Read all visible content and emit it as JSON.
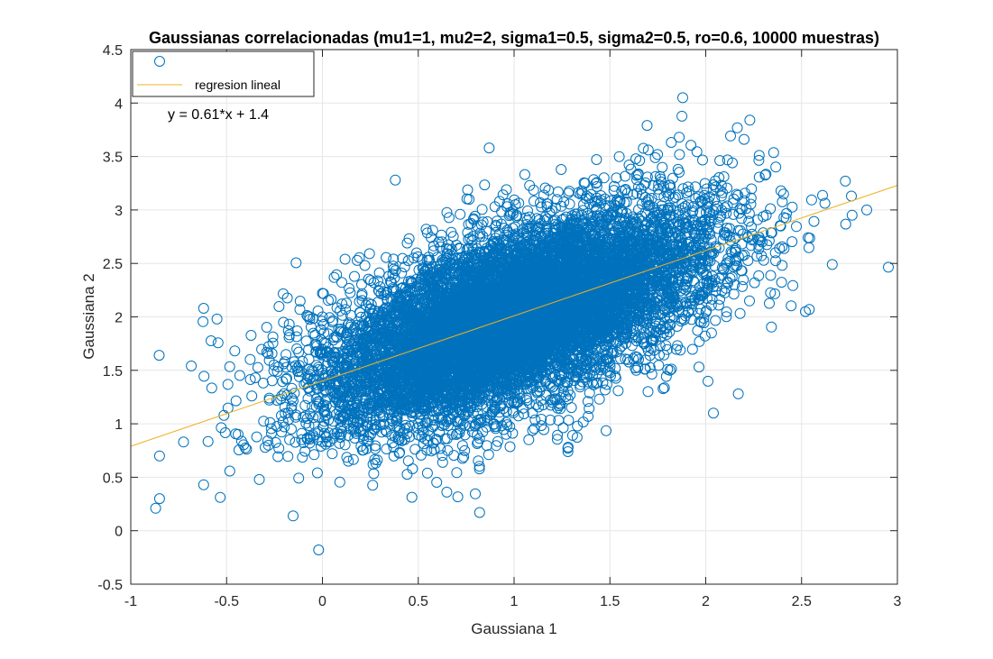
{
  "chart_data": {
    "type": "scatter",
    "title": "Gaussianas correlacionadas (mu1=1, mu2=2, sigma1=0.5, sigma2=0.5, ro=0.6, 10000 muestras)",
    "xlabel": "Gaussiana 1",
    "ylabel": "Gaussiana 2",
    "xlim": [
      -1,
      3
    ],
    "ylim": [
      -0.5,
      4.5
    ],
    "xticks": [
      "-1",
      "-0.5",
      "0",
      "0.5",
      "1",
      "1.5",
      "2",
      "2.5",
      "3"
    ],
    "yticks": [
      "-0.5",
      "0",
      "0.5",
      "1",
      "1.5",
      "2",
      "2.5",
      "3",
      "3.5",
      "4",
      "4.5"
    ],
    "grid": true,
    "legend_position": "top-left",
    "n_samples": 10000,
    "series": [
      {
        "marker": "circle",
        "color": "#0072BD",
        "legend_label": "",
        "distribution": {
          "mu_x": 1,
          "mu_y": 2,
          "sigma_x": 0.5,
          "sigma_y": 0.5,
          "rho": 0.6
        },
        "notable_points": [
          [
            -0.87,
            0.21
          ],
          [
            -0.85,
            0.3
          ],
          [
            -0.85,
            0.7
          ],
          [
            -0.62,
            0.43
          ],
          [
            -0.02,
            -0.18
          ],
          [
            0.82,
            0.17
          ],
          [
            1.88,
            4.05
          ],
          [
            2.84,
            3.0
          ],
          [
            2.76,
            3.13
          ],
          [
            2.2,
            3.66
          ],
          [
            2.23,
            3.84
          ],
          [
            2.04,
            1.1
          ],
          [
            2.17,
            1.28
          ],
          [
            0.87,
            3.58
          ],
          [
            0.38,
            3.28
          ],
          [
            -0.62,
            2.08
          ],
          [
            -0.55,
            1.98
          ],
          [
            2.54,
            2.07
          ],
          [
            2.52,
            2.05
          ],
          [
            2.66,
            2.49
          ]
        ]
      },
      {
        "name": "regresion lineal",
        "type": "line",
        "color": "#EDB120",
        "slope": 0.61,
        "intercept": 1.4,
        "x_range": [
          -1,
          3
        ]
      }
    ],
    "annotations": [
      {
        "text": "y = 0.61*x + 1.4",
        "x": -0.8,
        "y": 3.9
      }
    ]
  }
}
